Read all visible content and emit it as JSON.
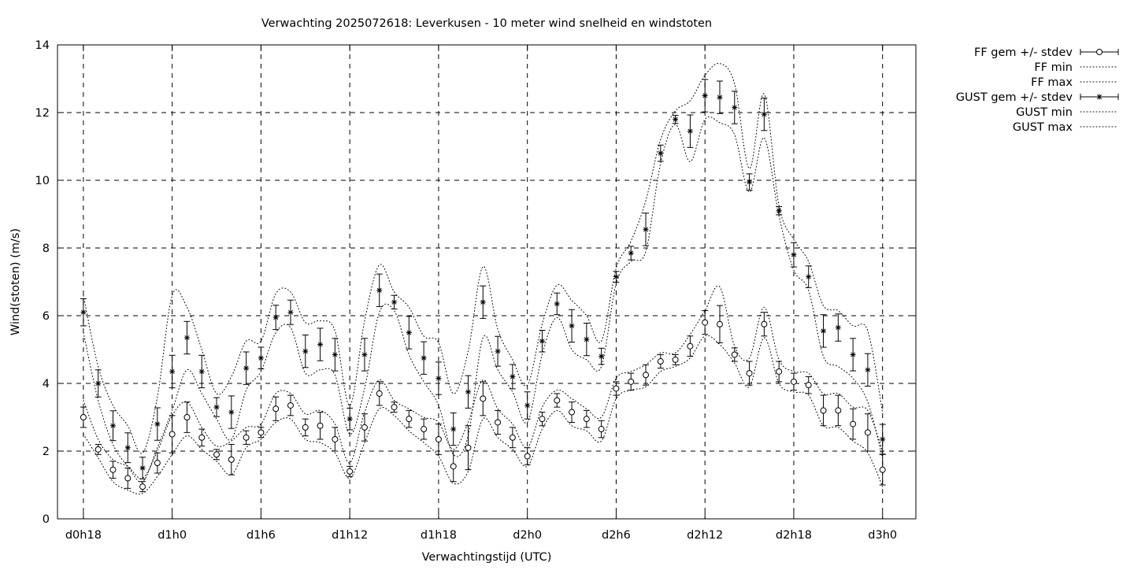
{
  "chart_data": {
    "type": "scatter",
    "title": "Verwachting 2025072618: Leverkusen - 10 meter wind snelheid en windstoten",
    "xlabel": "Verwachtingstijd (UTC)",
    "ylabel": "Wind(stoten) (m/s)",
    "x_unit": "hours since d0h18",
    "xlim": [
      -1.75,
      56.25
    ],
    "ylim": [
      0,
      14
    ],
    "yticks": [
      0,
      2,
      4,
      6,
      8,
      10,
      12,
      14
    ],
    "xticks": [
      {
        "x": 0,
        "label": "d0h18"
      },
      {
        "x": 6,
        "label": "d1h0"
      },
      {
        "x": 12,
        "label": "d1h6"
      },
      {
        "x": 18,
        "label": "d1h12"
      },
      {
        "x": 24,
        "label": "d1h18"
      },
      {
        "x": 30,
        "label": "d2h0"
      },
      {
        "x": 36,
        "label": "d2h6"
      },
      {
        "x": 42,
        "label": "d2h12"
      },
      {
        "x": 48,
        "label": "d2h18"
      },
      {
        "x": 54,
        "label": "d3h0"
      }
    ],
    "grid": true,
    "legend_position": "outside-right",
    "x": [
      0,
      1,
      2,
      3,
      4,
      5,
      6,
      7,
      8,
      9,
      10,
      11,
      12,
      13,
      14,
      15,
      16,
      17,
      18,
      19,
      20,
      21,
      22,
      23,
      24,
      25,
      26,
      27,
      28,
      29,
      30,
      31,
      32,
      33,
      34,
      35,
      36,
      37,
      38,
      39,
      40,
      41,
      42,
      43,
      44,
      45,
      46,
      47,
      48,
      49,
      50,
      51,
      52,
      53,
      54
    ],
    "series": [
      {
        "name": "FF gem +/- stdev",
        "style": "errorbar-circle",
        "values": [
          3.0,
          2.05,
          1.45,
          1.2,
          0.95,
          1.65,
          2.5,
          3.0,
          2.4,
          1.9,
          1.75,
          2.4,
          2.55,
          3.25,
          3.35,
          2.7,
          2.75,
          2.35,
          1.4,
          2.7,
          3.7,
          3.3,
          2.95,
          2.65,
          2.35,
          1.55,
          2.1,
          3.55,
          2.85,
          2.4,
          1.85,
          2.95,
          3.5,
          3.15,
          2.95,
          2.65,
          3.85,
          4.05,
          4.25,
          4.65,
          4.7,
          5.1,
          5.8,
          5.75,
          4.85,
          4.3,
          5.75,
          4.35,
          4.05,
          3.95,
          3.2,
          3.2,
          2.8,
          2.55,
          1.45
        ],
        "err": [
          0.3,
          0.15,
          0.25,
          0.3,
          0.15,
          0.3,
          0.55,
          0.45,
          0.25,
          0.15,
          0.45,
          0.2,
          0.15,
          0.35,
          0.3,
          0.25,
          0.4,
          0.35,
          0.15,
          0.4,
          0.35,
          0.15,
          0.25,
          0.3,
          0.45,
          0.45,
          0.65,
          0.5,
          0.35,
          0.3,
          0.25,
          0.2,
          0.2,
          0.3,
          0.25,
          0.25,
          0.2,
          0.25,
          0.3,
          0.2,
          0.15,
          0.3,
          0.35,
          0.55,
          0.2,
          0.35,
          0.35,
          0.3,
          0.25,
          0.25,
          0.45,
          0.45,
          0.45,
          0.55,
          0.45
        ]
      },
      {
        "name": "FF min",
        "style": "dotted-line",
        "values": [
          2.5,
          1.8,
          1.1,
          0.85,
          0.75,
          1.25,
          1.9,
          2.45,
          2.05,
          1.7,
          1.3,
          2.1,
          2.35,
          2.85,
          2.95,
          2.35,
          2.25,
          1.95,
          1.2,
          2.25,
          3.25,
          3.05,
          2.6,
          2.25,
          1.85,
          1.05,
          1.4,
          2.95,
          2.4,
          2.05,
          1.55,
          2.65,
          3.2,
          2.75,
          2.6,
          2.3,
          3.55,
          3.8,
          3.9,
          4.35,
          4.5,
          4.75,
          5.4,
          5.15,
          4.6,
          3.9,
          5.35,
          4.0,
          3.75,
          3.65,
          2.75,
          2.7,
          2.3,
          1.95,
          0.95
        ]
      },
      {
        "name": "FF max",
        "style": "dotted-line",
        "values": [
          3.5,
          2.35,
          1.75,
          1.55,
          1.2,
          2.0,
          3.05,
          3.45,
          2.7,
          2.15,
          2.3,
          2.7,
          2.8,
          3.7,
          3.7,
          3.1,
          3.2,
          2.8,
          1.65,
          3.15,
          4.1,
          3.5,
          3.25,
          3.0,
          2.85,
          2.05,
          2.85,
          4.1,
          3.25,
          2.8,
          2.1,
          3.3,
          3.8,
          3.55,
          3.25,
          3.0,
          4.15,
          4.35,
          4.55,
          4.9,
          4.9,
          5.45,
          6.15,
          6.85,
          5.1,
          4.75,
          6.25,
          4.7,
          4.35,
          4.3,
          3.7,
          3.7,
          3.3,
          3.2,
          2.0
        ]
      },
      {
        "name": "GUST gem +/- stdev",
        "style": "errorbar-star",
        "values": [
          6.1,
          4.0,
          2.75,
          2.1,
          1.5,
          2.8,
          4.35,
          5.35,
          4.35,
          3.3,
          3.15,
          4.45,
          4.75,
          5.95,
          6.1,
          4.95,
          5.15,
          4.85,
          2.95,
          4.85,
          6.75,
          6.4,
          5.5,
          4.75,
          4.15,
          2.65,
          3.75,
          6.4,
          4.95,
          4.2,
          3.35,
          5.25,
          6.35,
          5.7,
          5.3,
          4.8,
          7.15,
          7.85,
          8.55,
          10.8,
          11.8,
          11.45,
          12.5,
          12.45,
          12.15,
          9.95,
          11.95,
          9.1,
          7.8,
          7.15,
          5.55,
          5.65,
          4.85,
          4.4,
          2.35
        ]
      },
      {
        "name": "GUST min",
        "style": "dotted-line",
        "values": [
          5.5,
          3.5,
          2.2,
          1.55,
          1.1,
          2.1,
          3.2,
          4.4,
          3.7,
          2.95,
          2.35,
          3.8,
          4.35,
          5.5,
          5.65,
          4.3,
          4.4,
          4.25,
          2.5,
          3.85,
          6.1,
          6.15,
          4.85,
          4.05,
          3.35,
          1.9,
          2.45,
          5.35,
          4.4,
          3.75,
          2.85,
          4.85,
          5.95,
          5.0,
          4.7,
          4.5,
          6.95,
          7.6,
          7.9,
          10.5,
          11.65,
          10.55,
          11.8,
          11.7,
          11.35,
          9.65,
          11.25,
          8.95,
          7.35,
          6.75,
          4.8,
          4.5,
          4.15,
          3.45,
          1.8
        ]
      },
      {
        "name": "GUST max",
        "style": "dotted-line",
        "values": [
          6.6,
          4.5,
          3.35,
          2.75,
          1.95,
          3.6,
          6.6,
          6.25,
          5.0,
          3.7,
          4.2,
          5.25,
          5.25,
          6.65,
          6.7,
          5.8,
          5.85,
          5.55,
          3.35,
          5.85,
          7.5,
          6.7,
          6.25,
          5.4,
          5.2,
          3.7,
          4.95,
          7.45,
          5.6,
          4.7,
          3.95,
          5.75,
          6.9,
          6.45,
          6.0,
          5.25,
          7.4,
          8.2,
          9.4,
          11.2,
          12.05,
          12.35,
          13.1,
          13.45,
          12.85,
          10.35,
          12.55,
          9.25,
          8.25,
          7.6,
          6.3,
          6.15,
          5.7,
          5.55,
          3.15
        ]
      }
    ]
  }
}
